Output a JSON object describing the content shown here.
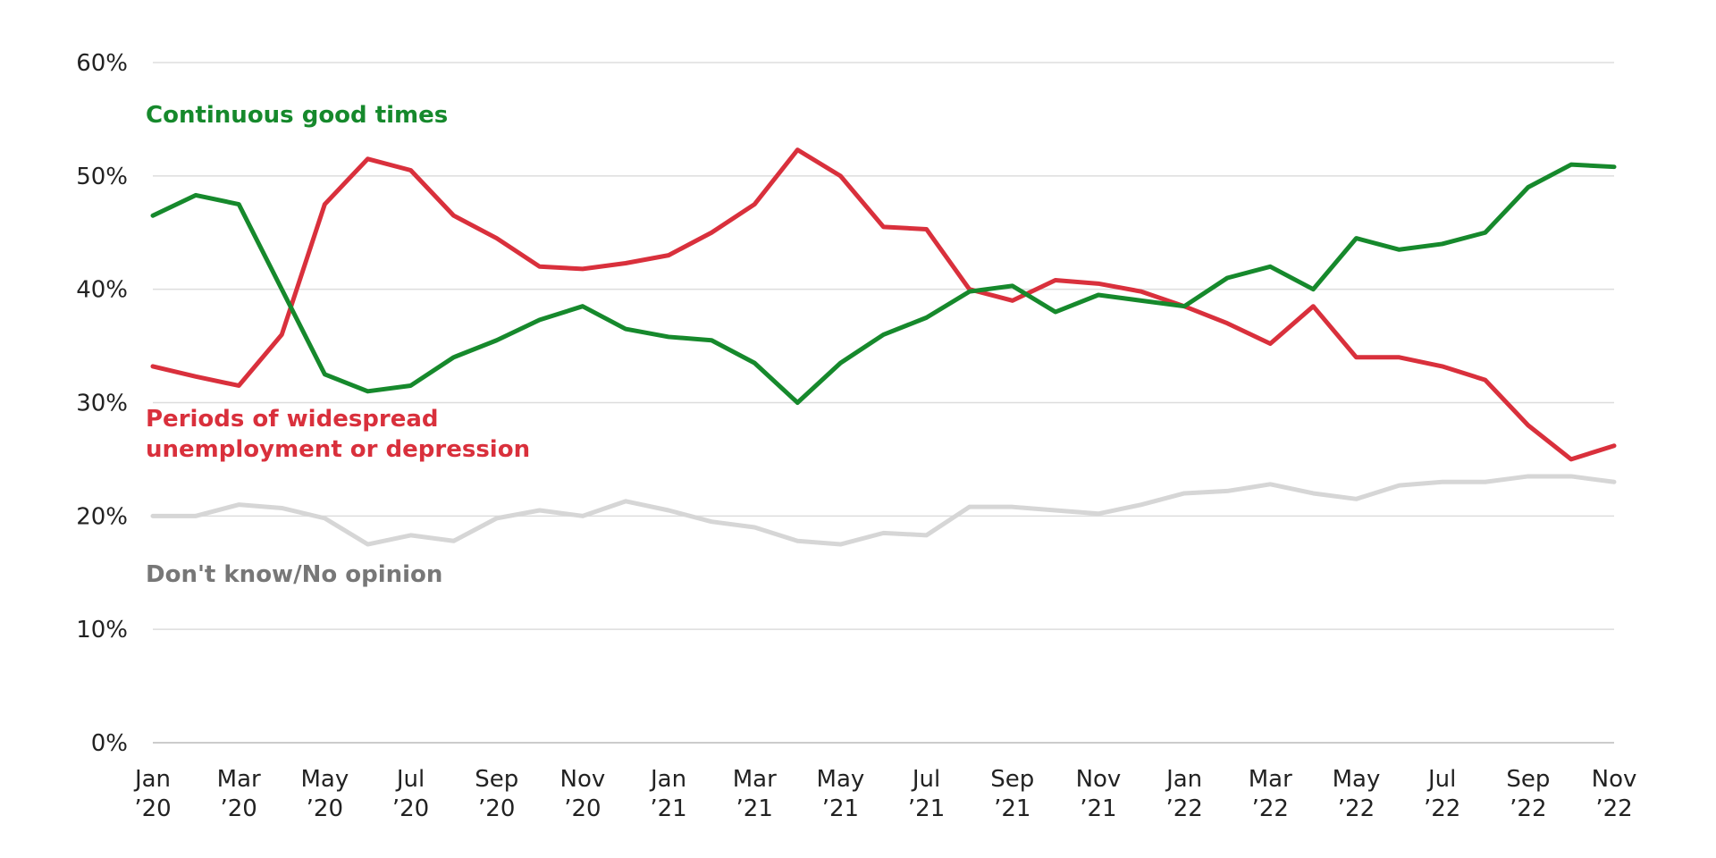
{
  "chart_data": {
    "type": "line",
    "categories": [
      "Jan ’20",
      null,
      "Mar ’20",
      null,
      "May ’20",
      null,
      "Jul ’20",
      null,
      "Sep ’20",
      null,
      "Nov ’20",
      null,
      "Jan ’21",
      null,
      "Mar ’21",
      null,
      "May ’21",
      null,
      "Jul ’21",
      null,
      "Sep ’21",
      null,
      "Nov ’21",
      null,
      "Jan ’22",
      null,
      "Mar ’22",
      null,
      "May ’22",
      null,
      "Jul ’22",
      null,
      "Sep ’22",
      null,
      "Nov ’22"
    ],
    "series": [
      {
        "name": "Continuous good times",
        "color": "#16892c",
        "values": [
          46.5,
          48.3,
          47.5,
          40,
          32.5,
          31,
          31.5,
          34,
          35.5,
          37.3,
          38.5,
          36.5,
          35.8,
          35.5,
          33.5,
          30,
          33.5,
          36,
          37.5,
          39.8,
          40.3,
          38,
          39.5,
          39,
          38.5,
          41,
          42,
          40,
          44.5,
          43.5,
          44,
          45,
          49,
          51,
          50.8
        ]
      },
      {
        "name": "Periods of widespread unemployment or depression",
        "color": "#d9303c",
        "values": [
          33.2,
          32.3,
          31.5,
          36,
          47.5,
          51.5,
          50.5,
          46.5,
          44.5,
          42,
          41.8,
          42.3,
          43,
          45,
          47.5,
          52.3,
          50,
          45.5,
          45.3,
          40,
          39,
          40.8,
          40.5,
          39.8,
          38.5,
          37,
          35.2,
          38.5,
          34,
          34,
          33.2,
          32,
          28,
          25,
          26.2
        ]
      },
      {
        "name": "Don't know/No opinion",
        "color": "#d6d6d6",
        "values": [
          20,
          20,
          21,
          20.7,
          19.8,
          17.5,
          18.3,
          17.8,
          19.8,
          20.5,
          20,
          21.3,
          20.5,
          19.5,
          19,
          17.8,
          17.5,
          18.5,
          18.3,
          20.8,
          20.8,
          20.5,
          20.2,
          21,
          22,
          22.2,
          22.8,
          22,
          21.5,
          22.7,
          23,
          23,
          23.5,
          23.5,
          23
        ]
      }
    ],
    "ylim": [
      0,
      60
    ],
    "yticks": [
      {
        "value": 0,
        "label": "0%"
      },
      {
        "value": 10,
        "label": "10%"
      },
      {
        "value": 20,
        "label": "20%"
      },
      {
        "value": 30,
        "label": "30%"
      },
      {
        "value": 40,
        "label": "40%"
      },
      {
        "value": 50,
        "label": "50%"
      },
      {
        "value": 60,
        "label": "60%"
      }
    ],
    "grid": true
  }
}
